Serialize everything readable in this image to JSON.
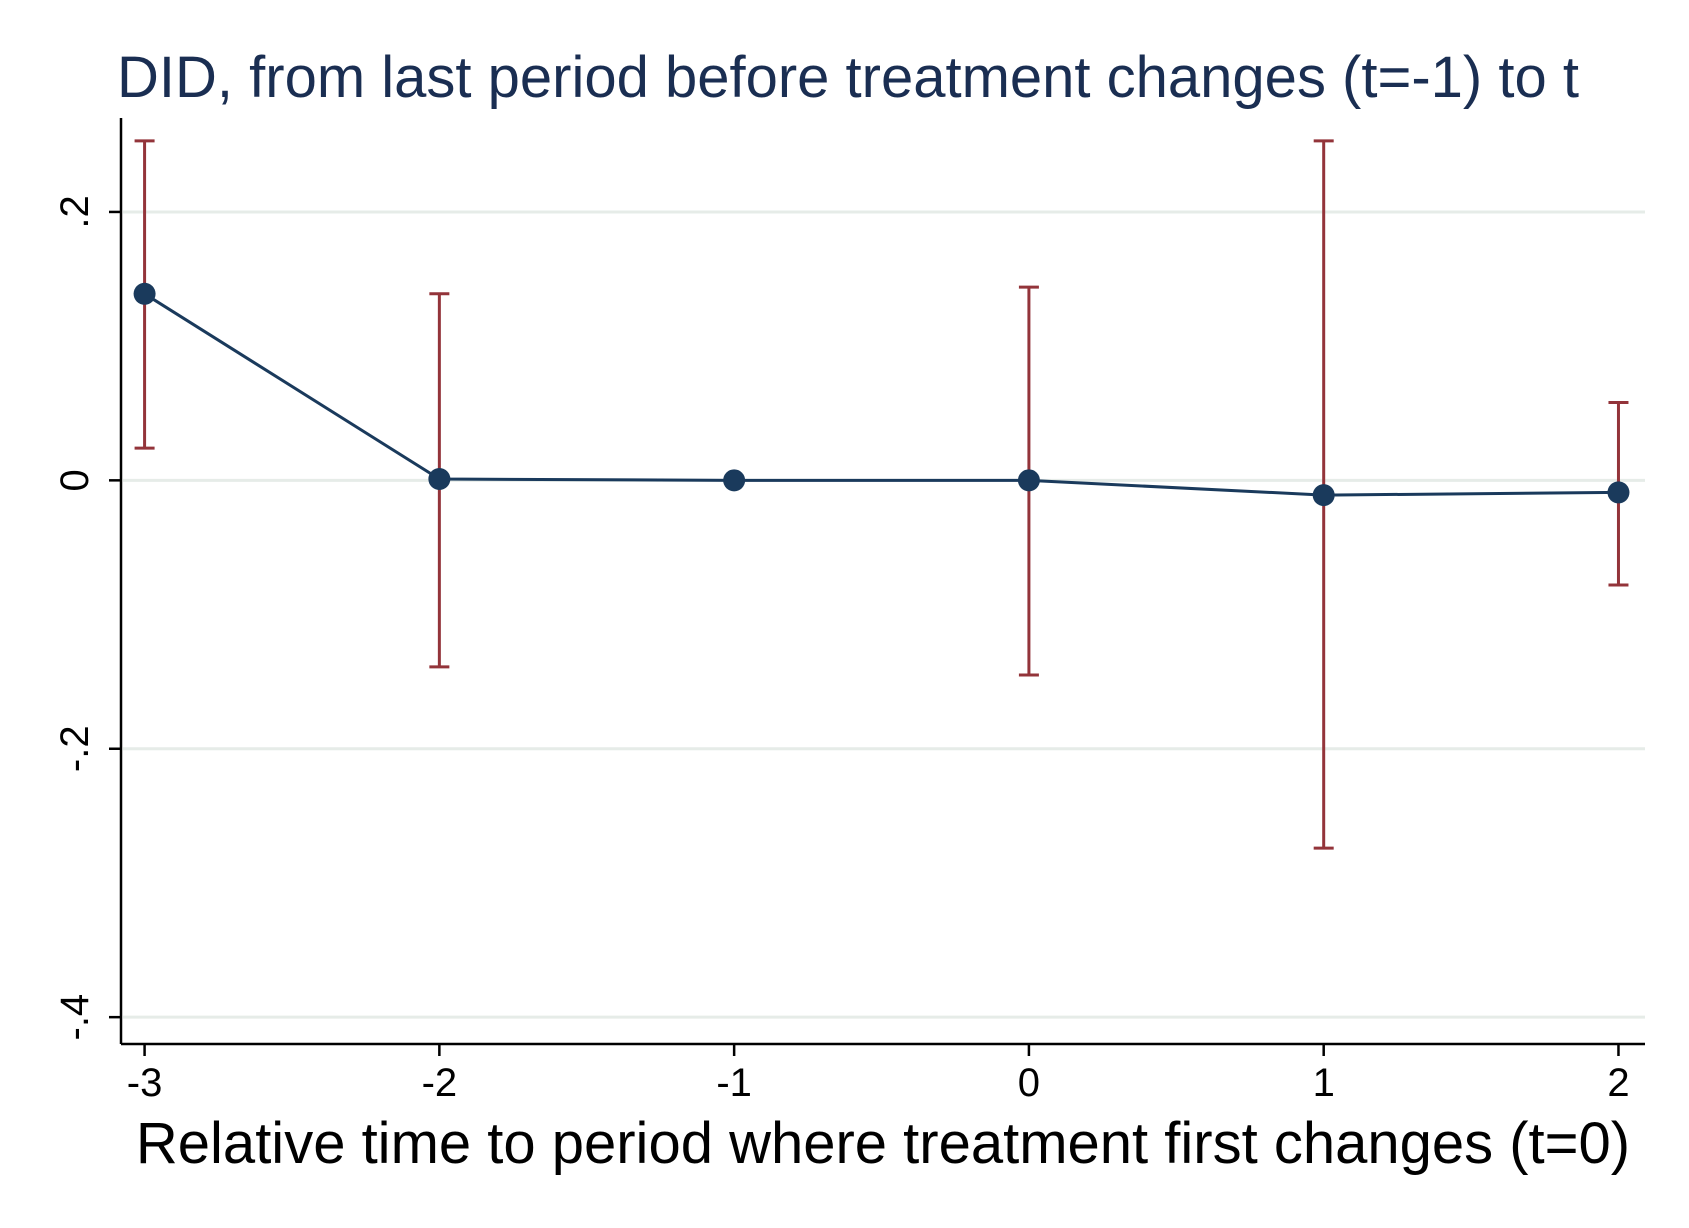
{
  "chart_data": {
    "type": "line",
    "title": "DID, from last period before treatment changes (t=-1) to t",
    "xlabel": "Relative time to period where treatment first changes (t=0)",
    "ylabel": "",
    "x": [
      -3,
      -2,
      -1,
      0,
      1,
      2
    ],
    "x_tick_labels": [
      "-3",
      "-2",
      "-1",
      "0",
      "1",
      "2"
    ],
    "y_ticks": [
      -0.4,
      -0.2,
      0,
      0.2
    ],
    "y_tick_labels": [
      "-.4",
      "-.2",
      "0",
      ".2"
    ],
    "xlim": [
      -3.08,
      2.09
    ],
    "ylim": [
      -0.42,
      0.27
    ],
    "grid": true,
    "legend": "none",
    "series": [
      {
        "values": [
          0.139,
          0.001,
          0.0,
          0.0,
          -0.011,
          -0.009
        ],
        "ci_lower": [
          0.024,
          -0.139,
          null,
          -0.145,
          -0.274,
          -0.078
        ],
        "ci_upper": [
          0.253,
          0.139,
          null,
          0.144,
          0.253,
          0.058
        ]
      }
    ],
    "colors": {
      "series": "#1a3a5c",
      "ci": "#93343a",
      "grid": "#e6ece8",
      "title": "#1a2e52"
    }
  }
}
